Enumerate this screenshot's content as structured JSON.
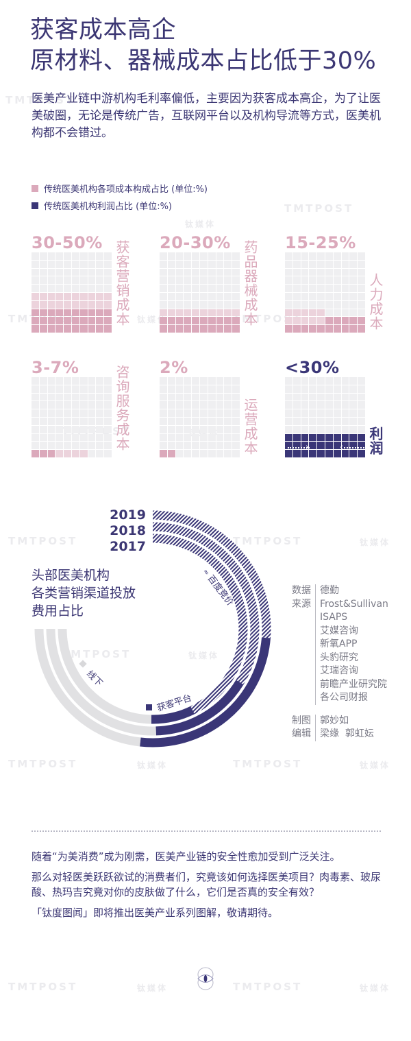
{
  "header": {
    "title_line1": "获客成本高企",
    "title_line2": "原材料、器械成本占比低于30%"
  },
  "intro": "医美产业链中游机构毛利率偏低，主要因为获客成本高企，为了让医美破圈，无论是传统广告，互联网平台以及机构导流等方式，医美机构都不会错过。",
  "legend": {
    "items": [
      {
        "label": "传统医美机构各项成本构成占比 (单位:%)",
        "color": "#dba9bb"
      },
      {
        "label": "传统医美机构利润占比 (单位:%)",
        "color": "#3a3677"
      }
    ]
  },
  "colors": {
    "navy": "#3a3677",
    "pink_dark": "#dba9bb",
    "pink_light": "#ecd3dc",
    "grid_empty": "#efeff1",
    "ring_grey": "#e1e1e3"
  },
  "watermarks": {
    "en": "TMTPOST",
    "cn": "钛媒体"
  },
  "waffles": [
    {
      "pct": "30-50%",
      "label": "获客营销成本",
      "dark": 30,
      "light": 20
    },
    {
      "pct": "20-30%",
      "label": "药品器械成本",
      "dark": 20,
      "light": 10
    },
    {
      "pct": "15-25%",
      "label": "人力成本",
      "dark": 15,
      "light": 10
    },
    {
      "pct": "3-7%",
      "label": "咨询服务成本",
      "dark": 3,
      "light": 4
    },
    {
      "pct": "2%",
      "label": "运营成本",
      "dark": 2,
      "light": 0
    },
    {
      "pct": "<30%",
      "label": "利润",
      "navy": 30
    }
  ],
  "ring_chart": {
    "title_lines": [
      "头部医美机构",
      "各类营销渠道投放",
      "费用占比"
    ],
    "years": [
      "2019",
      "2018",
      "2017"
    ],
    "segment_labels": {
      "baidu": "百度竞价",
      "platform": "获客平台",
      "offline": "线下"
    }
  },
  "credits": {
    "source_key_line1": "数据",
    "source_key_line2": "来源",
    "sources": [
      "德勤",
      "Frost&Sullivan",
      "ISAPS",
      "艾媒咨询",
      "新氧APP",
      "头豹研究",
      "艾瑞咨询",
      "前瞻产业研究院",
      "各公司财报"
    ],
    "chart_key": "制图",
    "chart_by": "郭妙如",
    "editor_key": "编辑",
    "editors": "梁缘  郭虹妘"
  },
  "outro": {
    "p1": "随着“为美消费”成为刚需，医美产业链的安全性愈加受到广泛关注。",
    "p2": "那么对轻医美跃跃欲试的消费者们，究竟该如何选择医美项目？肉毒素、玻尿酸、热玛吉究竟对你的皮肤做了什么，它们是否真的安全有效？",
    "p3": "「钛度图闻」即将推出医美产业系列图解，敬请期待。"
  },
  "chart_data": [
    {
      "type": "waffle",
      "title": "传统医美机构各项成本构成及利润占比 (单位:%)",
      "categories": [
        "获客营销成本",
        "药品器械成本",
        "人力成本",
        "咨询服务成本",
        "运营成本",
        "利润"
      ],
      "ranges": [
        [
          30,
          50
        ],
        [
          20,
          30
        ],
        [
          15,
          25
        ],
        [
          3,
          7
        ],
        [
          2,
          2
        ],
        [
          0,
          30
        ]
      ],
      "labels": [
        "30-50%",
        "20-30%",
        "15-25%",
        "3-7%",
        "2%",
        "<30%"
      ],
      "grid": "10x10",
      "series_colors": {
        "cost": "#dba9bb",
        "profit": "#3a3677"
      }
    },
    {
      "type": "radial_bar",
      "title": "头部医美机构各类营销渠道投放费用占比",
      "categories": [
        "2017",
        "2018",
        "2019"
      ],
      "series": [
        {
          "name": "百度竞价",
          "values": [
            57,
            45,
            35
          ],
          "style": "hatched"
        },
        {
          "name": "获客平台",
          "values": [
            10,
            21,
            34
          ],
          "color": "#3a3677"
        },
        {
          "name": "线下",
          "values": [
            33,
            34,
            31
          ],
          "color": "#e1e1e3"
        }
      ],
      "unit": "%",
      "arc_span_degrees": 270,
      "note": "values estimated from arc angles"
    }
  ]
}
